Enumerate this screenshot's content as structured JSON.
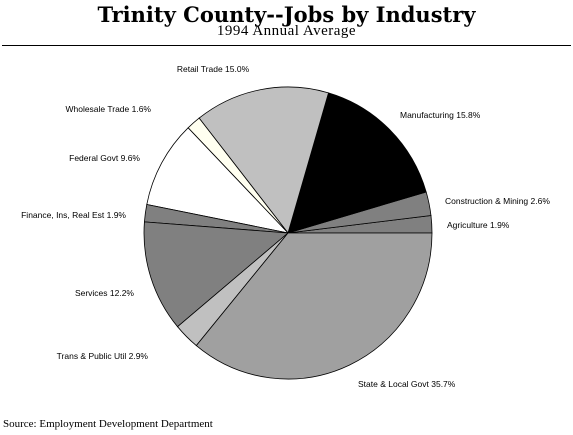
{
  "chart_data": {
    "type": "pie",
    "title": "Trinity County--Jobs by Industry",
    "subtitle": "1994 Annual Average",
    "source": "Source: Employment Development Department",
    "slices": [
      {
        "label": "Agriculture",
        "value": 1.9,
        "display": "Agriculture  1.9%",
        "color": "#808080"
      },
      {
        "label": "Construction & Mining",
        "value": 2.6,
        "display": "Construction & Mining  2.6%",
        "color": "#808080"
      },
      {
        "label": "Manufacturing",
        "value": 15.8,
        "display": "Manufacturing  15.8%",
        "color": "#000000"
      },
      {
        "label": "Retail Trade",
        "value": 15.0,
        "display": "Retail Trade  15.0%",
        "color": "#c0c0c0"
      },
      {
        "label": "Wholesale Trade",
        "value": 1.6,
        "display": "Wholesale Trade  1.6%",
        "color": "#fffff0"
      },
      {
        "label": "Federal Govt",
        "value": 9.6,
        "display": "Federal Govt  9.6%",
        "color": "#ffffff"
      },
      {
        "label": "Finance, Ins, Real Est",
        "value": 1.9,
        "display": "Finance, Ins, Real Est  1.9%",
        "color": "#808080"
      },
      {
        "label": "Services",
        "value": 12.2,
        "display": "Services  12.2%",
        "color": "#808080"
      },
      {
        "label": "Trans & Public Util",
        "value": 2.9,
        "display": "Trans & Public Util  2.9%",
        "color": "#c0c0c0"
      },
      {
        "label": "State & Local Govt",
        "value": 35.7,
        "display": "State & Local Govt  35.7%",
        "color": "#a0a0a0"
      }
    ]
  }
}
